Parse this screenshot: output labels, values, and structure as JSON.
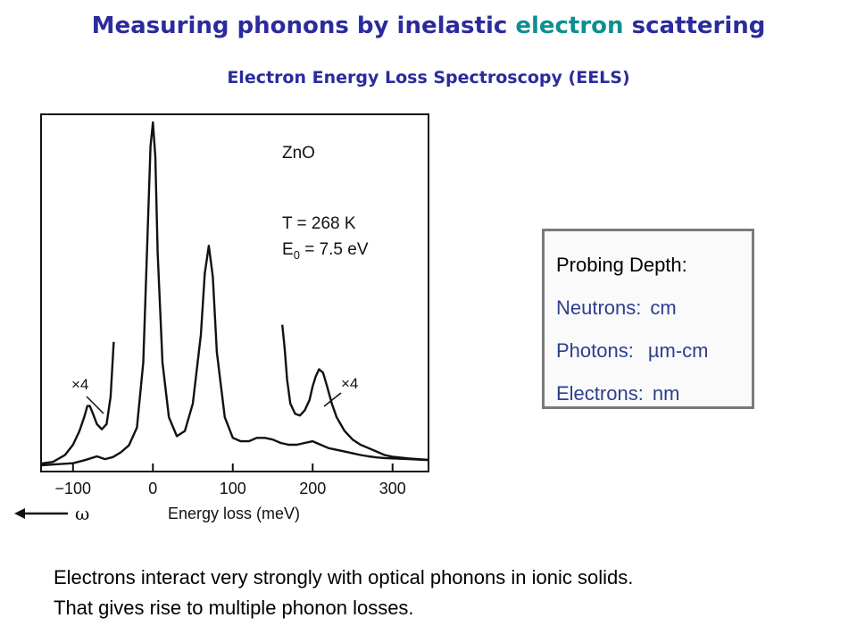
{
  "title": {
    "part1": "Measuring phonons by inelastic ",
    "highlight": "electron",
    "part2": " scattering"
  },
  "subtitle": "Electron Energy Loss Spectroscopy (EELS)",
  "info_box": {
    "heading": "Probing Depth:",
    "items": [
      {
        "label": "Neutrons:",
        "value": "cm"
      },
      {
        "label": "Photons:",
        "value": "µm-cm"
      },
      {
        "label": "Electrons:",
        "value": "nm"
      }
    ]
  },
  "bottom_text": [
    "Electrons interact very strongly with optical phonons in ionic solids.",
    "That gives rise to multiple phonon losses."
  ],
  "colors": {
    "title": "#2b2b9e",
    "highlight": "#0f8f8f",
    "info_text": "#2c3f8f",
    "box_border": "#7a7a7a"
  },
  "chart_data": {
    "type": "line",
    "xlabel": "Energy loss (meV)",
    "ylabel": "",
    "xlim": [
      -140,
      345
    ],
    "ylim": [
      0,
      100
    ],
    "x_ticks": [
      -100,
      0,
      100,
      200,
      300
    ],
    "x_tick_labels": [
      "−100",
      "0",
      "100",
      "200",
      "300"
    ],
    "grid": false,
    "y_tick_labels": false,
    "annotations": [
      {
        "text": "ZnO"
      },
      {
        "text": "T = 268 K"
      },
      {
        "text": "E0 = 7.5 eV",
        "main": "E",
        "sub": "0",
        "rest": " = 7.5 eV"
      },
      {
        "text": "×4",
        "side": "left"
      },
      {
        "text": "×4",
        "side": "right"
      }
    ],
    "direction_label": "ω",
    "series": [
      {
        "label": "main",
        "x": [
          -140,
          -120,
          -100,
          -85,
          -70,
          -60,
          -50,
          -40,
          -30,
          -20,
          -12,
          -6,
          -3,
          0,
          3,
          6,
          12,
          20,
          30,
          40,
          50,
          60,
          65,
          70,
          75,
          80,
          90,
          100,
          110,
          120,
          130,
          140,
          150,
          160,
          170,
          180,
          190,
          200,
          210,
          220,
          230,
          240,
          250,
          260,
          270,
          280,
          290,
          300,
          320,
          345
        ],
        "y": [
          0,
          0.3,
          0.6,
          1.5,
          2.6,
          1.8,
          2.4,
          3.8,
          5.8,
          11,
          30,
          72,
          93,
          100,
          90,
          62,
          30,
          14,
          8.5,
          10,
          18,
          38,
          56,
          64,
          55,
          33,
          14,
          8,
          7,
          7,
          8,
          8,
          7.5,
          6.5,
          6,
          6,
          6.5,
          7,
          6,
          5,
          4.5,
          4,
          3.5,
          3,
          2.6,
          2.3,
          2.1,
          2,
          1.8,
          1.5
        ]
      },
      {
        "label": "×4",
        "x": [
          -140,
          -125,
          -110,
          -100,
          -92,
          -86,
          -82,
          -79,
          -75,
          -70,
          -64,
          -58,
          -53,
          -49
        ],
        "y": [
          0.5,
          1,
          3,
          6,
          10,
          14,
          17.3,
          17.3,
          15,
          12,
          10.5,
          12,
          20,
          36
        ]
      },
      {
        "label": "×4",
        "x": [
          162,
          165,
          168,
          172,
          178,
          184,
          190,
          196,
          200,
          204,
          208,
          213,
          218,
          224,
          230,
          240,
          250,
          260,
          270,
          280,
          290,
          300,
          320,
          345
        ],
        "y": [
          41,
          34,
          25,
          18,
          15,
          14.5,
          16,
          19,
          23,
          26,
          28,
          27,
          23,
          18,
          14,
          10,
          7.5,
          6,
          5,
          4,
          3,
          2.5,
          2,
          1.6
        ]
      }
    ]
  }
}
